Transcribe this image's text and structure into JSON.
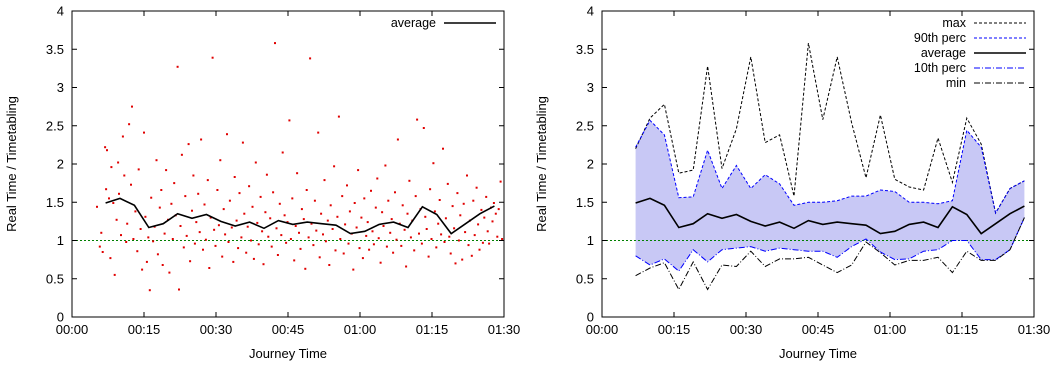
{
  "chart_data": [
    {
      "type": "scatter",
      "xlabel": "Journey Time",
      "ylabel": "Real Time / Timetabling",
      "x_ticks": [
        "00:00",
        "00:15",
        "00:30",
        "00:45",
        "01:00",
        "01:15",
        "01:30"
      ],
      "y_ticks": [
        "0",
        "0.5",
        "1",
        "1.5",
        "2",
        "2.5",
        "3",
        "3.5",
        "4"
      ],
      "xlim_minutes": [
        0,
        90
      ],
      "ylim": [
        0,
        4
      ],
      "legend_position": "top-right",
      "reference_line": {
        "y": 1,
        "color": "#008000",
        "style": "dashed"
      },
      "colors": {
        "points": "#e00000",
        "average": "#000000"
      },
      "series": [
        {
          "name": "average",
          "kind": "line",
          "x_minutes": [
            7,
            10,
            13,
            16,
            19,
            22,
            25,
            28,
            31,
            34,
            37,
            40,
            43,
            46,
            49,
            52,
            55,
            58,
            61,
            64,
            67,
            70,
            73,
            76,
            79,
            82,
            85,
            88
          ],
          "y": [
            1.49,
            1.55,
            1.46,
            1.17,
            1.22,
            1.35,
            1.29,
            1.34,
            1.25,
            1.19,
            1.24,
            1.16,
            1.26,
            1.21,
            1.24,
            1.22,
            1.2,
            1.09,
            1.12,
            1.21,
            1.24,
            1.17,
            1.44,
            1.34,
            1.09,
            1.22,
            1.35,
            1.45
          ]
        }
      ],
      "scatter_points": [
        [
          5.2,
          1.44
        ],
        [
          5.8,
          0.92
        ],
        [
          6.1,
          1.1
        ],
        [
          6.4,
          0.85
        ],
        [
          6.9,
          2.22
        ],
        [
          7.1,
          1.67
        ],
        [
          7.3,
          2.18
        ],
        [
          7.7,
          1.55
        ],
        [
          8.0,
          0.77
        ],
        [
          8.2,
          1.96
        ],
        [
          8.6,
          1.49
        ],
        [
          8.9,
          0.55
        ],
        [
          9.3,
          1.27
        ],
        [
          9.6,
          2.02
        ],
        [
          9.8,
          1.61
        ],
        [
          10.2,
          1.07
        ],
        [
          10.6,
          2.36
        ],
        [
          10.9,
          1.85
        ],
        [
          11.3,
          0.98
        ],
        [
          11.5,
          1.22
        ],
        [
          11.9,
          2.52
        ],
        [
          12.3,
          1.73
        ],
        [
          12.5,
          2.75
        ],
        [
          12.8,
          1.02
        ],
        [
          13.2,
          1.38
        ],
        [
          13.6,
          0.86
        ],
        [
          13.9,
          1.93
        ],
        [
          14.3,
          1.15
        ],
        [
          14.6,
          0.62
        ],
        [
          15.0,
          2.41
        ],
        [
          15.3,
          1.31
        ],
        [
          15.6,
          0.72
        ],
        [
          15.9,
          1.04
        ],
        [
          16.2,
          0.35
        ],
        [
          16.5,
          1.56
        ],
        [
          16.9,
          0.99
        ],
        [
          17.2,
          1.18
        ],
        [
          17.6,
          2.05
        ],
        [
          17.9,
          0.82
        ],
        [
          18.3,
          1.43
        ],
        [
          18.6,
          1.66
        ],
        [
          18.9,
          0.68
        ],
        [
          19.3,
          1.09
        ],
        [
          19.6,
          1.92
        ],
        [
          20.0,
          1.27
        ],
        [
          20.3,
          0.58
        ],
        [
          20.7,
          1.48
        ],
        [
          21.0,
          1.02
        ],
        [
          21.3,
          1.75
        ],
        [
          21.6,
          1.33
        ],
        [
          22.0,
          3.27
        ],
        [
          22.3,
          0.36
        ],
        [
          22.6,
          1.19
        ],
        [
          22.9,
          2.12
        ],
        [
          23.3,
          0.91
        ],
        [
          23.6,
          1.58
        ],
        [
          23.9,
          1.06
        ],
        [
          24.3,
          2.26
        ],
        [
          24.6,
          0.73
        ],
        [
          25.0,
          1.39
        ],
        [
          25.3,
          1.85
        ],
        [
          25.6,
          0.96
        ],
        [
          25.9,
          1.24
        ],
        [
          26.3,
          1.61
        ],
        [
          26.6,
          1.11
        ],
        [
          26.9,
          2.32
        ],
        [
          27.3,
          0.88
        ],
        [
          27.6,
          1.47
        ],
        [
          27.9,
          1.01
        ],
        [
          28.3,
          1.79
        ],
        [
          28.6,
          0.64
        ],
        [
          28.9,
          1.3
        ],
        [
          29.3,
          3.39
        ],
        [
          29.6,
          1.14
        ],
        [
          29.9,
          0.93
        ],
        [
          30.3,
          1.66
        ],
        [
          30.6,
          1.2
        ],
        [
          30.9,
          2.05
        ],
        [
          31.3,
          0.79
        ],
        [
          31.6,
          1.41
        ],
        [
          31.9,
          1.08
        ],
        [
          32.3,
          2.39
        ],
        [
          32.6,
          0.98
        ],
        [
          32.9,
          1.52
        ],
        [
          33.3,
          1.17
        ],
        [
          33.6,
          0.72
        ],
        [
          33.9,
          1.83
        ],
        [
          34.3,
          1.26
        ],
        [
          34.6,
          0.9
        ],
        [
          34.9,
          1.62
        ],
        [
          35.3,
          1.04
        ],
        [
          35.6,
          2.28
        ],
        [
          35.9,
          1.35
        ],
        [
          36.3,
          0.84
        ],
        [
          36.6,
          1.18
        ],
        [
          36.9,
          1.71
        ],
        [
          37.3,
          1.0
        ],
        [
          37.6,
          1.44
        ],
        [
          37.9,
          0.76
        ],
        [
          38.3,
          2.02
        ],
        [
          38.6,
          1.23
        ],
        [
          38.9,
          0.95
        ],
        [
          39.3,
          1.57
        ],
        [
          39.6,
          1.12
        ],
        [
          39.9,
          0.69
        ],
        [
          40.3,
          1.37
        ],
        [
          40.6,
          1.86
        ],
        [
          40.9,
          1.05
        ],
        [
          41.3,
          1.29
        ],
        [
          41.6,
          0.92
        ],
        [
          41.9,
          1.63
        ],
        [
          42.3,
          3.58
        ],
        [
          42.6,
          1.16
        ],
        [
          42.9,
          0.81
        ],
        [
          43.3,
          1.48
        ],
        [
          43.6,
          1.07
        ],
        [
          43.9,
          2.15
        ],
        [
          44.3,
          1.33
        ],
        [
          44.6,
          0.97
        ],
        [
          44.9,
          1.24
        ],
        [
          45.3,
          2.57
        ],
        [
          45.6,
          1.02
        ],
        [
          45.9,
          1.55
        ],
        [
          46.3,
          0.74
        ],
        [
          46.6,
          1.19
        ],
        [
          46.9,
          1.88
        ],
        [
          47.3,
          1.1
        ],
        [
          47.6,
          0.89
        ],
        [
          47.9,
          1.41
        ],
        [
          48.3,
          1.28
        ],
        [
          48.6,
          0.63
        ],
        [
          48.9,
          1.66
        ],
        [
          49.3,
          1.04
        ],
        [
          49.6,
          3.38
        ],
        [
          49.9,
          1.22
        ],
        [
          50.3,
          0.94
        ],
        [
          50.6,
          1.52
        ],
        [
          50.9,
          1.13
        ],
        [
          51.3,
          2.41
        ],
        [
          51.6,
          0.78
        ],
        [
          51.9,
          1.35
        ],
        [
          52.3,
          1.08
        ],
        [
          52.6,
          1.79
        ],
        [
          52.9,
          0.99
        ],
        [
          53.3,
          1.26
        ],
        [
          53.6,
          0.68
        ],
        [
          53.9,
          1.46
        ],
        [
          54.3,
          1.15
        ],
        [
          54.6,
          1.97
        ],
        [
          54.9,
          0.87
        ],
        [
          55.3,
          1.31
        ],
        [
          55.6,
          2.62
        ],
        [
          55.9,
          1.02
        ],
        [
          56.3,
          1.58
        ],
        [
          56.6,
          0.83
        ],
        [
          56.9,
          1.21
        ],
        [
          57.3,
          1.72
        ],
        [
          57.6,
          0.96
        ],
        [
          57.9,
          1.38
        ],
        [
          58.3,
          1.09
        ],
        [
          58.6,
          0.62
        ],
        [
          58.9,
          1.49
        ],
        [
          59.3,
          1.17
        ],
        [
          59.6,
          1.92
        ],
        [
          59.9,
          0.9
        ],
        [
          60.3,
          1.3
        ],
        [
          60.6,
          0.77
        ],
        [
          60.9,
          1.55
        ],
        [
          61.3,
          1.06
        ],
        [
          61.6,
          1.24
        ],
        [
          61.9,
          0.88
        ],
        [
          62.3,
          1.65
        ],
        [
          62.6,
          1.12
        ],
        [
          62.9,
          0.95
        ],
        [
          63.3,
          1.43
        ],
        [
          63.6,
          1.81
        ],
        [
          63.9,
          1.03
        ],
        [
          64.3,
          0.71
        ],
        [
          64.6,
          1.37
        ],
        [
          64.9,
          1.19
        ],
        [
          65.3,
          1.98
        ],
        [
          65.6,
          0.92
        ],
        [
          65.9,
          1.52
        ],
        [
          66.3,
          1.1
        ],
        [
          66.6,
          1.28
        ],
        [
          66.9,
          0.84
        ],
        [
          67.3,
          1.63
        ],
        [
          67.6,
          1.01
        ],
        [
          67.9,
          2.32
        ],
        [
          68.3,
          1.22
        ],
        [
          68.6,
          0.93
        ],
        [
          68.9,
          1.46
        ],
        [
          69.3,
          1.14
        ],
        [
          69.6,
          0.66
        ],
        [
          69.9,
          1.35
        ],
        [
          70.3,
          1.78
        ],
        [
          70.6,
          1.04
        ],
        [
          70.9,
          1.26
        ],
        [
          71.3,
          0.87
        ],
        [
          71.6,
          1.58
        ],
        [
          71.9,
          2.58
        ],
        [
          72.3,
          1.09
        ],
        [
          72.6,
          1.41
        ],
        [
          72.9,
          0.96
        ],
        [
          73.3,
          2.47
        ],
        [
          73.6,
          1.31
        ],
        [
          73.9,
          1.15
        ],
        [
          74.3,
          0.79
        ],
        [
          74.6,
          1.67
        ],
        [
          74.9,
          1.02
        ],
        [
          75.3,
          2.01
        ],
        [
          75.6,
          1.38
        ],
        [
          75.9,
          0.91
        ],
        [
          76.3,
          1.22
        ],
        [
          76.6,
          1.53
        ],
        [
          76.9,
          1.08
        ],
        [
          77.3,
          2.2
        ],
        [
          77.6,
          0.98
        ],
        [
          77.9,
          1.29
        ],
        [
          78.3,
          1.74
        ],
        [
          78.6,
          1.05
        ],
        [
          78.9,
          0.83
        ],
        [
          79.3,
          1.45
        ],
        [
          79.6,
          1.16
        ],
        [
          79.9,
          0.7
        ],
        [
          80.3,
          1.62
        ],
        [
          80.6,
          1.0
        ],
        [
          80.9,
          1.33
        ],
        [
          81.3,
          0.75
        ],
        [
          81.6,
          1.48
        ],
        [
          81.9,
          1.11
        ],
        [
          82.3,
          1.85
        ],
        [
          82.6,
          0.94
        ],
        [
          82.9,
          1.26
        ],
        [
          83.3,
          0.8
        ],
        [
          83.6,
          1.52
        ],
        [
          83.9,
          1.07
        ],
        [
          84.3,
          1.69
        ],
        [
          84.6,
          1.21
        ],
        [
          84.9,
          0.88
        ],
        [
          85.3,
          1.4
        ],
        [
          85.6,
          0.97
        ],
        [
          85.9,
          1.3
        ],
        [
          86.3,
          1.57
        ],
        [
          86.6,
          1.12
        ],
        [
          86.9,
          0.96
        ],
        [
          87.3,
          1.43
        ],
        [
          87.6,
          1.25
        ],
        [
          87.9,
          1.49
        ],
        [
          88.3,
          1.35
        ],
        [
          88.6,
          1.05
        ],
        [
          88.9,
          1.41
        ],
        [
          89.3,
          1.77
        ],
        [
          89.6,
          1.02
        ]
      ]
    },
    {
      "type": "line",
      "xlabel": "Journey Time",
      "ylabel": "Real Time / Timetabling",
      "x_ticks": [
        "00:00",
        "00:15",
        "00:30",
        "00:45",
        "01:00",
        "01:15",
        "01:30"
      ],
      "y_ticks": [
        "0",
        "0.5",
        "1",
        "1.5",
        "2",
        "2.5",
        "3",
        "3.5",
        "4"
      ],
      "xlim_minutes": [
        0,
        90
      ],
      "ylim": [
        0,
        4
      ],
      "legend_position": "top-right",
      "reference_line": {
        "y": 1,
        "color": "#008000",
        "style": "dashed"
      },
      "band": {
        "between": [
          "90th perc",
          "10th perc"
        ],
        "fill": "#c8c8f5"
      },
      "x_minutes": [
        7,
        10,
        13,
        16,
        19,
        22,
        25,
        28,
        31,
        34,
        37,
        40,
        43,
        46,
        49,
        52,
        55,
        58,
        61,
        64,
        67,
        70,
        73,
        76,
        79,
        82,
        85,
        88
      ],
      "series": [
        {
          "name": "max",
          "color": "#000000",
          "dash": "3,2",
          "y": [
            2.2,
            2.6,
            2.78,
            1.88,
            1.92,
            3.28,
            1.94,
            2.46,
            3.4,
            2.28,
            2.38,
            1.58,
            3.58,
            2.58,
            3.4,
            2.54,
            1.82,
            2.64,
            1.8,
            1.7,
            1.66,
            2.34,
            1.76,
            2.6,
            2.26,
            1.36,
            1.68,
            1.78
          ]
        },
        {
          "name": "90th perc",
          "color": "#0000ff",
          "dash": "3,2",
          "y": [
            2.22,
            2.57,
            2.38,
            1.56,
            1.57,
            2.18,
            1.68,
            1.98,
            1.68,
            1.86,
            1.74,
            1.46,
            1.5,
            1.5,
            1.52,
            1.58,
            1.58,
            1.66,
            1.64,
            1.5,
            1.5,
            1.48,
            1.52,
            2.44,
            2.22,
            1.36,
            1.68,
            1.78
          ]
        },
        {
          "name": "average",
          "color": "#000000",
          "dash": "",
          "y": [
            1.49,
            1.55,
            1.46,
            1.17,
            1.22,
            1.35,
            1.29,
            1.34,
            1.25,
            1.19,
            1.24,
            1.16,
            1.26,
            1.21,
            1.24,
            1.22,
            1.2,
            1.09,
            1.12,
            1.21,
            1.24,
            1.17,
            1.44,
            1.34,
            1.09,
            1.22,
            1.35,
            1.45
          ]
        },
        {
          "name": "10th perc",
          "color": "#0000ff",
          "dash": "6,2,1,2",
          "y": [
            0.8,
            0.68,
            0.76,
            0.6,
            0.88,
            0.72,
            0.88,
            0.9,
            0.92,
            0.86,
            0.9,
            0.88,
            0.86,
            0.86,
            0.78,
            0.92,
            1.02,
            0.85,
            0.75,
            0.76,
            0.86,
            0.88,
            1.0,
            1.0,
            0.75,
            0.75,
            0.88,
            1.3
          ]
        },
        {
          "name": "min",
          "color": "#000000",
          "dash": "6,2,1,2",
          "y": [
            0.54,
            0.64,
            0.71,
            0.36,
            0.72,
            0.36,
            0.68,
            0.66,
            0.86,
            0.66,
            0.76,
            0.76,
            0.78,
            0.68,
            0.58,
            0.68,
            0.98,
            0.84,
            0.68,
            0.74,
            0.74,
            0.78,
            0.58,
            0.86,
            0.74,
            0.74,
            0.88,
            1.3
          ]
        }
      ]
    }
  ]
}
